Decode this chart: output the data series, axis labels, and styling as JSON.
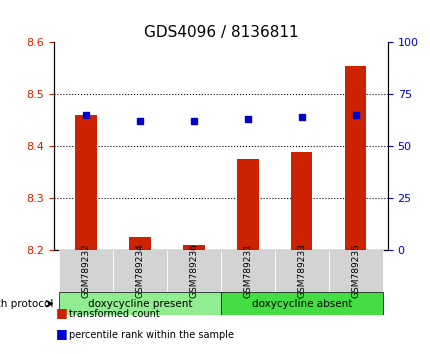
{
  "title": "GDS4096 / 8136811",
  "samples": [
    "GSM789232",
    "GSM789234",
    "GSM789236",
    "GSM789231",
    "GSM789233",
    "GSM789235"
  ],
  "bar_values": [
    8.46,
    8.225,
    8.21,
    8.375,
    8.39,
    8.555
  ],
  "dot_values": [
    65,
    62,
    62,
    63,
    64,
    65
  ],
  "ylim_left": [
    8.2,
    8.6
  ],
  "ylim_right": [
    0,
    100
  ],
  "yticks_left": [
    8.2,
    8.3,
    8.4,
    8.5,
    8.6
  ],
  "yticks_right": [
    0,
    25,
    50,
    75,
    100
  ],
  "bar_color": "#cc2200",
  "dot_color": "#0000cc",
  "bar_bottom": 8.2,
  "groups": [
    {
      "label": "doxycycline present",
      "indices": [
        0,
        1,
        2
      ],
      "color": "#90ee90"
    },
    {
      "label": "doxycycline absent",
      "indices": [
        3,
        4,
        5
      ],
      "color": "#44dd44"
    }
  ],
  "group_label": "growth protocol",
  "legend_bar_label": "transformed count",
  "legend_dot_label": "percentile rank within the sample",
  "tick_label_color_left": "#cc2200",
  "tick_label_color_right": "#0000cc",
  "grid_style": "dotted",
  "background_color": "#ffffff",
  "plot_bg": "#ffffff",
  "bar_width": 0.4,
  "box_bg": "#d3d3d3"
}
